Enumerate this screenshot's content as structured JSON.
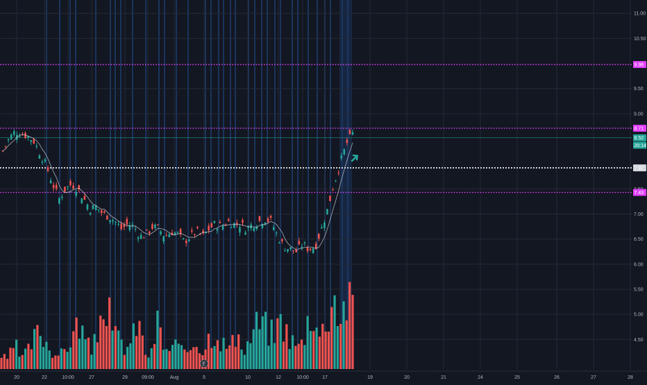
{
  "colors": {
    "background": "#131722",
    "grid": "#252a37",
    "up": "#26a69a",
    "down": "#ef5350",
    "level_line": "#e040fb",
    "current_price_line": "#ffffff",
    "session_band": "#1c3a66",
    "ma_line": "#d1d4dc",
    "price_tag_up": "#26a69a"
  },
  "icons": {
    "event_marker": "earnings-e-icon",
    "up_arrow": "green-up-arrow-icon"
  },
  "price_axis": {
    "ticks": [
      {
        "value": 11.0,
        "label": "11.00"
      },
      {
        "value": 10.5,
        "label": "10.50"
      },
      {
        "value": 9.5,
        "label": "9.50"
      },
      {
        "value": 9.0,
        "label": "9.00"
      },
      {
        "value": 7.5,
        "label": "7.50"
      },
      {
        "value": 7.0,
        "label": "7.00"
      },
      {
        "value": 6.5,
        "label": "6.50"
      },
      {
        "value": 6.0,
        "label": "6.00"
      },
      {
        "value": 5.5,
        "label": "5.50"
      },
      {
        "value": 5.0,
        "label": "5.00"
      },
      {
        "value": 4.5,
        "label": "4.50"
      }
    ],
    "min": 4.2,
    "max": 11.1,
    "tags": [
      {
        "name": "resistance-high",
        "value": 9.98,
        "label": "9.98",
        "style": "level"
      },
      {
        "name": "resistance-mid",
        "value": 8.71,
        "label": "8.71",
        "style": "level"
      },
      {
        "name": "last-price",
        "value": 8.52,
        "label": "8.52",
        "style": "price"
      },
      {
        "name": "countdown",
        "value": 8.37,
        "label": "20:14",
        "style": "price"
      },
      {
        "name": "current-line",
        "value": 7.92,
        "label": "7.92",
        "style": "current"
      },
      {
        "name": "support",
        "value": 7.43,
        "label": "7.43",
        "style": "level"
      }
    ]
  },
  "time_axis": {
    "labels": [
      "20",
      "22",
      "10:00",
      "27",
      "29",
      "09:00",
      "Aug",
      "5",
      "10",
      "12",
      "10:00",
      "17",
      "19",
      "20",
      "21",
      "24",
      "25",
      "26",
      "27",
      "28"
    ]
  },
  "horizontal_levels": [
    {
      "name": "resistance-high",
      "value": 9.98,
      "style": "dotted-magenta"
    },
    {
      "name": "resistance-mid",
      "value": 8.71,
      "style": "dotted-magenta"
    },
    {
      "name": "current-price",
      "value": 7.92,
      "style": "dotted-white"
    },
    {
      "name": "support",
      "value": 7.43,
      "style": "dotted-magenta"
    }
  ],
  "chart_data": {
    "type": "candlestick",
    "y_range": [
      4.2,
      11.1
    ],
    "x_categories": [
      "20",
      "22",
      "10:00",
      "27",
      "29",
      "09:00",
      "Aug",
      "5",
      "10",
      "12",
      "10:00",
      "17",
      "19",
      "20",
      "21",
      "24",
      "25",
      "26",
      "27",
      "28"
    ],
    "close_path": [
      8.25,
      8.5,
      8.65,
      8.6,
      8.55,
      8.45,
      8.2,
      7.95,
      7.6,
      7.3,
      7.5,
      7.6,
      7.5,
      7.3,
      7.1,
      7.15,
      7.0,
      6.95,
      6.85,
      6.7,
      6.8,
      6.75,
      6.55,
      6.6,
      6.75,
      6.7,
      6.55,
      6.65,
      6.6,
      6.45,
      6.55,
      6.65,
      6.55,
      6.7,
      6.8,
      6.75,
      6.85,
      6.8,
      6.8,
      6.7,
      6.8,
      6.85,
      6.9,
      6.85,
      6.55,
      6.35,
      6.3,
      6.25,
      6.4,
      6.3,
      6.35,
      6.7,
      7.1,
      7.6,
      8.0,
      8.4,
      8.6
    ],
    "volume_path": [
      0.15,
      0.1,
      0.3,
      0.12,
      0.2,
      0.35,
      0.45,
      0.3,
      0.2,
      0.15,
      0.25,
      0.4,
      0.55,
      0.3,
      0.2,
      0.5,
      0.9,
      0.4,
      0.35,
      0.25,
      0.3,
      0.6,
      0.2,
      0.15,
      0.55,
      0.25,
      0.2,
      0.3,
      0.15,
      0.25,
      0.35,
      0.2,
      0.4,
      0.45,
      0.3,
      0.25,
      0.35,
      0.2,
      0.3,
      0.5,
      0.55,
      0.45,
      0.4,
      0.6,
      0.4,
      0.3,
      0.25,
      0.55,
      0.7,
      0.35,
      0.6,
      0.9,
      0.6,
      0.8,
      0.7
    ],
    "event_marker": {
      "label": "E",
      "at_label": "5"
    }
  }
}
